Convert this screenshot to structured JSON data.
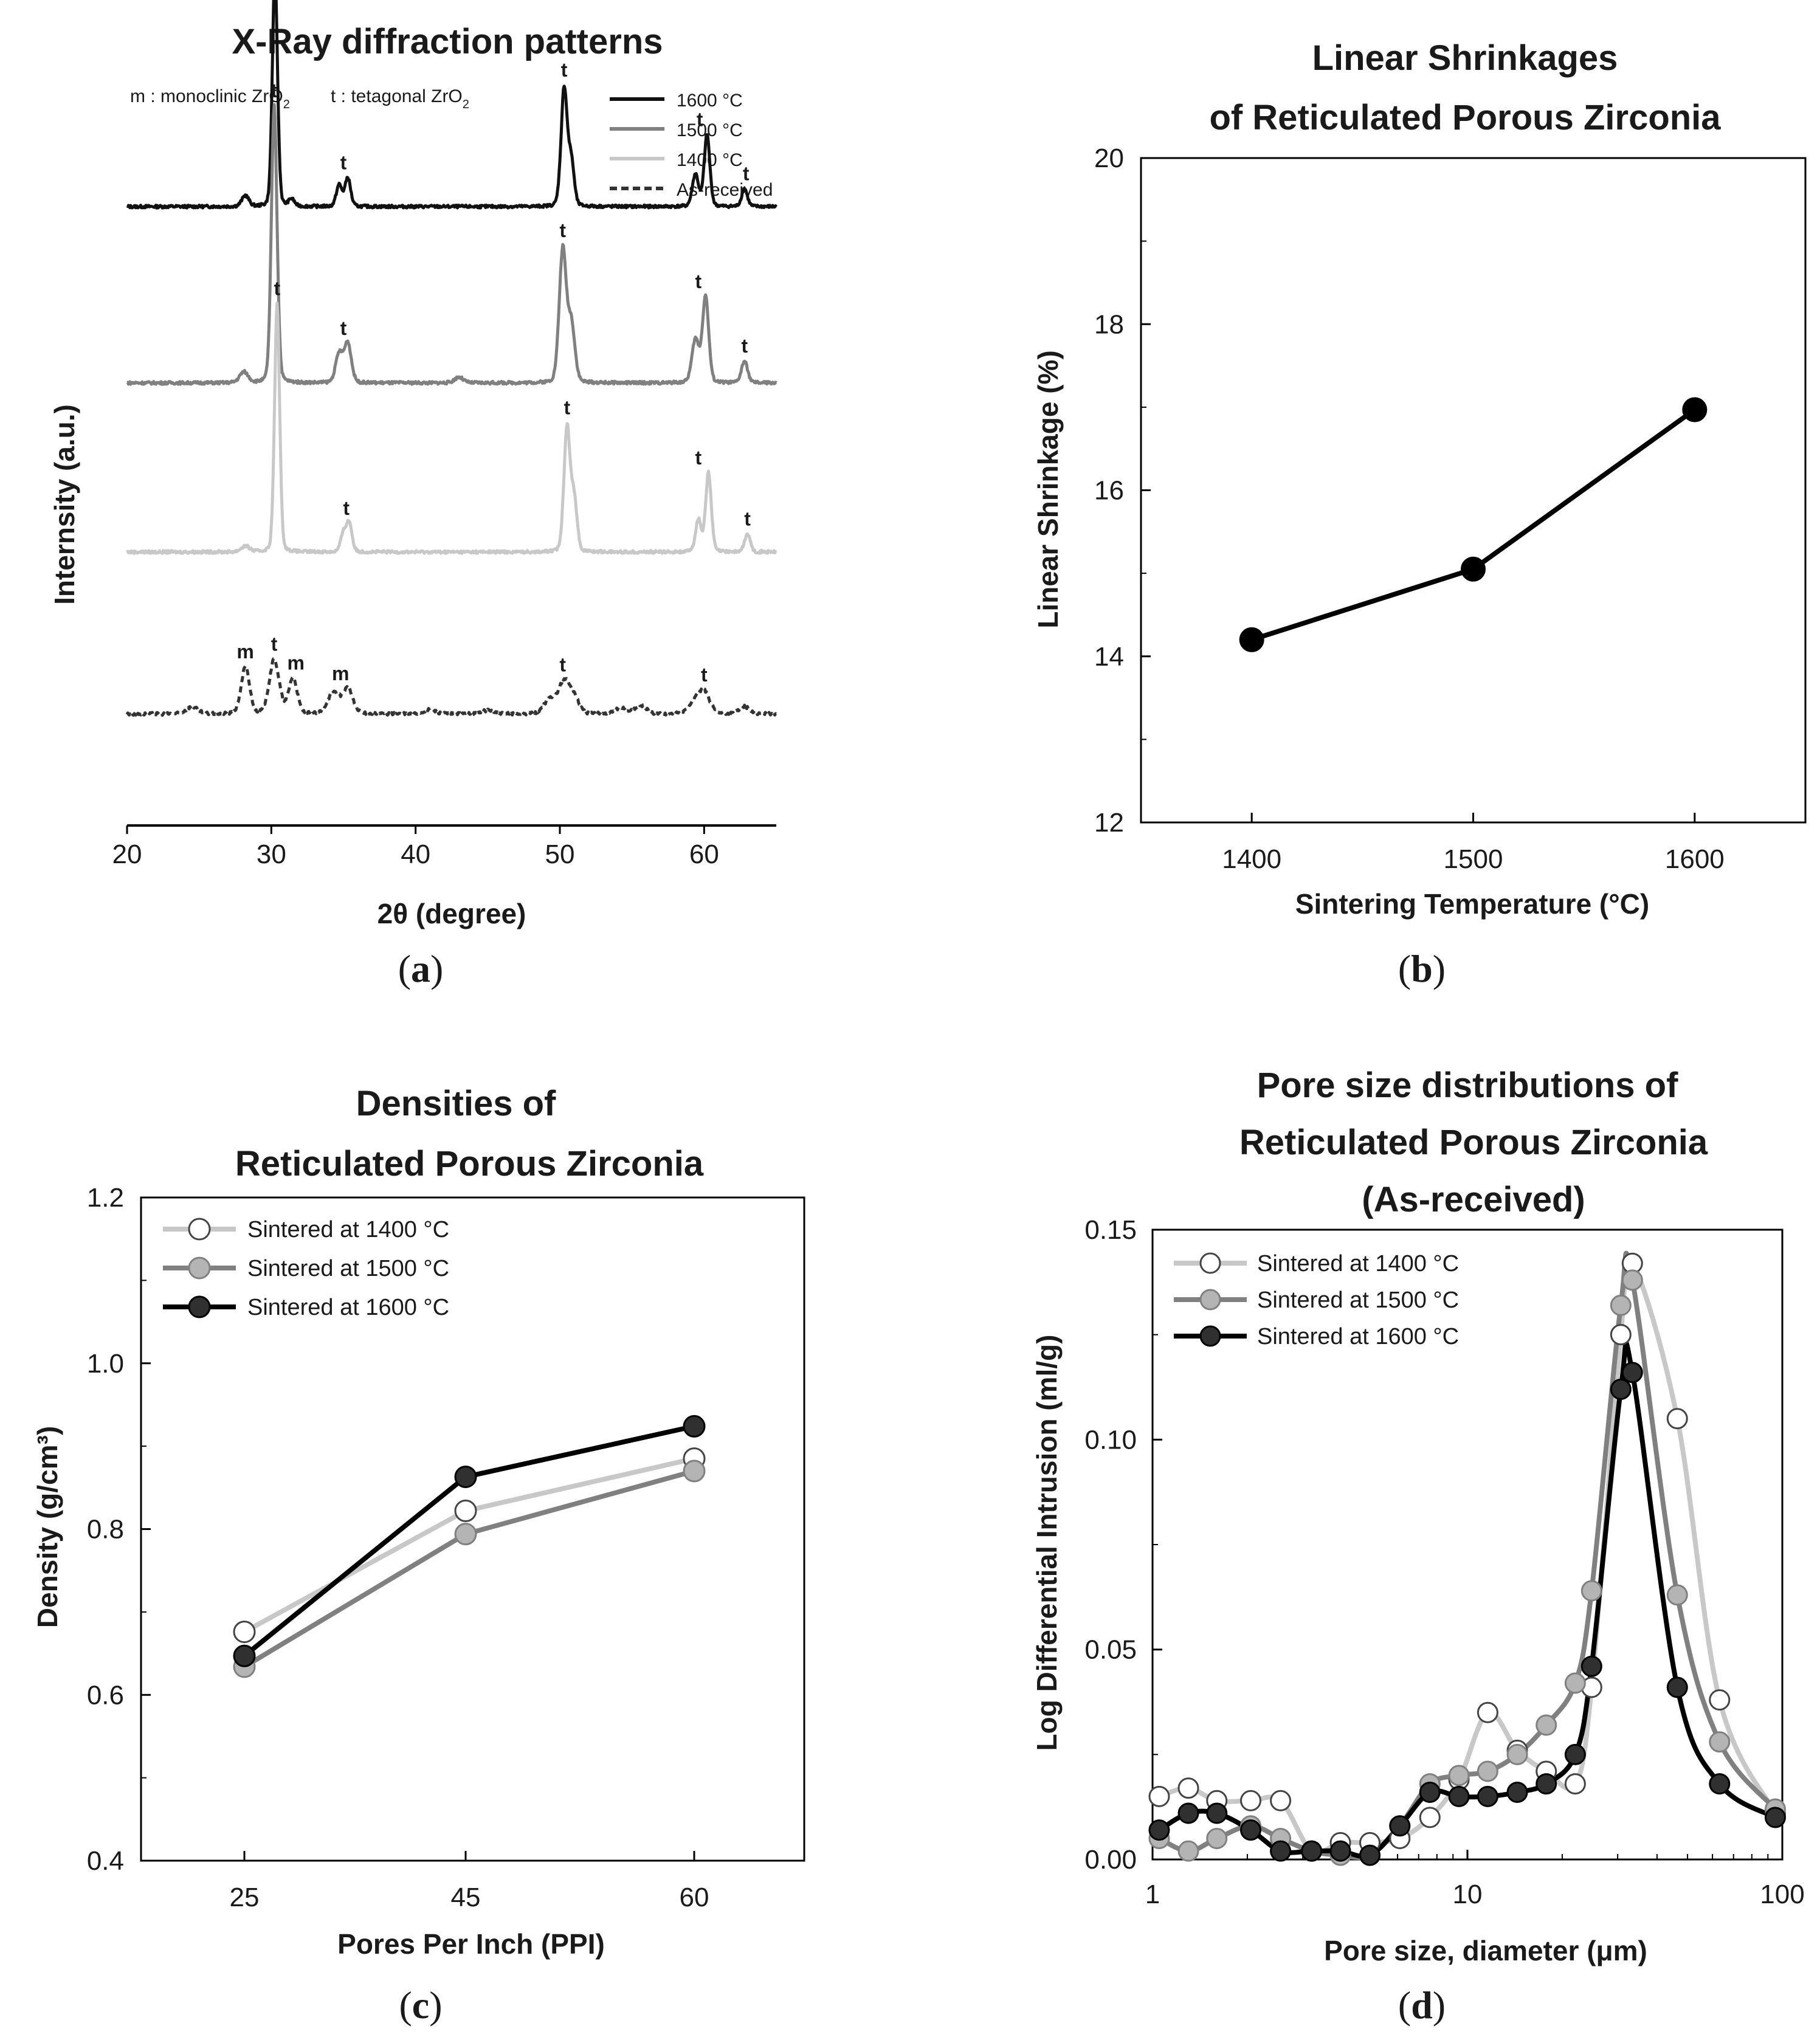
{
  "chart_data": [
    {
      "id": "a",
      "type": "line",
      "title": "X-Ray diffraction patterns",
      "xlabel": "2θ (degree)",
      "ylabel": "Internsity (a.u.)",
      "xlim": [
        20,
        65
      ],
      "xticks": [
        "20",
        "30",
        "40",
        "50",
        "60"
      ],
      "caption": "a",
      "note_parts": [
        {
          "text": "m : monoclinic ZrO",
          "sub": "2"
        },
        {
          "text": "t : tetagonal ZrO",
          "sub": "2"
        }
      ],
      "series": [
        {
          "name": "1600 °C",
          "color": "#111111",
          "dashed": false,
          "baseline": 0.86,
          "peaks": [
            {
              "x": 28.2,
              "h": 0.015,
              "w": 0.25
            },
            {
              "x": 30.25,
              "h": 0.33,
              "w": 0.18
            },
            {
              "x": 31.4,
              "h": 0.01,
              "w": 0.2
            },
            {
              "x": 34.7,
              "h": 0.03,
              "w": 0.2
            },
            {
              "x": 35.3,
              "h": 0.04,
              "w": 0.2
            },
            {
              "x": 50.3,
              "h": 0.165,
              "w": 0.22
            },
            {
              "x": 50.8,
              "h": 0.06,
              "w": 0.2
            },
            {
              "x": 59.4,
              "h": 0.045,
              "w": 0.22
            },
            {
              "x": 60.2,
              "h": 0.1,
              "w": 0.2
            },
            {
              "x": 62.8,
              "h": 0.025,
              "w": 0.2
            }
          ],
          "labels": [
            {
              "x": 30.25,
              "text": "t"
            },
            {
              "x": 35.0,
              "text": "t"
            },
            {
              "x": 50.3,
              "text": "t"
            },
            {
              "x": 59.7,
              "text": "t"
            },
            {
              "x": 62.9,
              "text": "t"
            }
          ]
        },
        {
          "name": "1500 °C",
          "color": "#808080",
          "dashed": false,
          "baseline": 0.615,
          "peaks": [
            {
              "x": 28.1,
              "h": 0.015,
              "w": 0.3
            },
            {
              "x": 30.2,
              "h": 0.385,
              "w": 0.2
            },
            {
              "x": 34.7,
              "h": 0.04,
              "w": 0.25
            },
            {
              "x": 35.3,
              "h": 0.055,
              "w": 0.25
            },
            {
              "x": 43.0,
              "h": 0.008,
              "w": 0.3
            },
            {
              "x": 50.2,
              "h": 0.185,
              "w": 0.25
            },
            {
              "x": 50.8,
              "h": 0.08,
              "w": 0.25
            },
            {
              "x": 59.4,
              "h": 0.06,
              "w": 0.25
            },
            {
              "x": 60.1,
              "h": 0.12,
              "w": 0.22
            },
            {
              "x": 62.8,
              "h": 0.03,
              "w": 0.22
            }
          ],
          "labels": [
            {
              "x": 30.2,
              "text": "t"
            },
            {
              "x": 35.0,
              "text": "t"
            },
            {
              "x": 50.2,
              "text": "t"
            },
            {
              "x": 59.6,
              "text": "t"
            },
            {
              "x": 62.8,
              "text": "t"
            }
          ]
        },
        {
          "name": "1400 °C",
          "color": "#c8c8c8",
          "dashed": false,
          "baseline": 0.38,
          "peaks": [
            {
              "x": 28.2,
              "h": 0.008,
              "w": 0.3
            },
            {
              "x": 30.4,
              "h": 0.345,
              "w": 0.18
            },
            {
              "x": 35.0,
              "h": 0.025,
              "w": 0.2
            },
            {
              "x": 35.4,
              "h": 0.04,
              "w": 0.2
            },
            {
              "x": 50.5,
              "h": 0.175,
              "w": 0.22
            },
            {
              "x": 51.0,
              "h": 0.07,
              "w": 0.2
            },
            {
              "x": 59.6,
              "h": 0.045,
              "w": 0.2
            },
            {
              "x": 60.3,
              "h": 0.11,
              "w": 0.2
            },
            {
              "x": 63.0,
              "h": 0.025,
              "w": 0.2
            }
          ],
          "labels": [
            {
              "x": 30.4,
              "text": "t"
            },
            {
              "x": 35.2,
              "text": "t"
            },
            {
              "x": 50.5,
              "text": "t"
            },
            {
              "x": 59.6,
              "text": "t"
            },
            {
              "x": 63.0,
              "text": "t"
            }
          ]
        },
        {
          "name": "As-received",
          "color": "#333333",
          "dashed": true,
          "baseline": 0.155,
          "peaks": [
            {
              "x": 24.5,
              "h": 0.01,
              "w": 0.4
            },
            {
              "x": 28.2,
              "h": 0.065,
              "w": 0.3
            },
            {
              "x": 30.2,
              "h": 0.075,
              "w": 0.35
            },
            {
              "x": 31.5,
              "h": 0.05,
              "w": 0.3
            },
            {
              "x": 34.3,
              "h": 0.03,
              "w": 0.4
            },
            {
              "x": 35.3,
              "h": 0.035,
              "w": 0.35
            },
            {
              "x": 41.0,
              "h": 0.006,
              "w": 0.4
            },
            {
              "x": 45.0,
              "h": 0.005,
              "w": 0.4
            },
            {
              "x": 49.3,
              "h": 0.02,
              "w": 0.4
            },
            {
              "x": 50.3,
              "h": 0.045,
              "w": 0.4
            },
            {
              "x": 51.0,
              "h": 0.02,
              "w": 0.35
            },
            {
              "x": 54.2,
              "h": 0.008,
              "w": 0.4
            },
            {
              "x": 55.6,
              "h": 0.012,
              "w": 0.4
            },
            {
              "x": 59.3,
              "h": 0.015,
              "w": 0.4
            },
            {
              "x": 60.0,
              "h": 0.03,
              "w": 0.4
            },
            {
              "x": 62.8,
              "h": 0.01,
              "w": 0.35
            }
          ],
          "labels": [
            {
              "x": 28.2,
              "text": "m"
            },
            {
              "x": 30.2,
              "text": "t"
            },
            {
              "x": 31.7,
              "text": "m"
            },
            {
              "x": 34.8,
              "text": "m"
            },
            {
              "x": 50.2,
              "text": "t"
            },
            {
              "x": 60.0,
              "text": "t"
            }
          ]
        }
      ]
    },
    {
      "id": "b",
      "type": "line",
      "title": [
        "Linear Shrinkages",
        "of Reticulated Porous Zirconia"
      ],
      "xlabel": "Sintering Temperature (°C)",
      "ylabel": "Linear Shrinkage (%)",
      "xlim": [
        1350,
        1650
      ],
      "ylim": [
        12,
        20
      ],
      "yticks": [
        12,
        14,
        16,
        18,
        20
      ],
      "categories": [
        "1400",
        "1500",
        "1600"
      ],
      "x": [
        1400,
        1500,
        1600
      ],
      "caption": "b",
      "series": [
        {
          "name": "Linear Shrinkage",
          "values": [
            14.2,
            15.05,
            16.97
          ],
          "color": "#000000",
          "fill": "#000000"
        }
      ]
    },
    {
      "id": "c",
      "type": "line",
      "title": [
        "Densities of",
        "Reticulated Porous Zirconia"
      ],
      "xlabel": "Pores Per Inch (PPI)",
      "ylabel": "Density (g/cm³)",
      "ylim": [
        0.4,
        1.2
      ],
      "yticks": [
        "0.4",
        "0.6",
        "0.8",
        "1.0",
        "1.2"
      ],
      "categories": [
        "25",
        "45",
        "60"
      ],
      "caption": "c",
      "legend_position": "top-left",
      "series": [
        {
          "name": "Sintered at 1400 °C",
          "values": [
            0.676,
            0.822,
            0.885
          ],
          "color": "#c8c8c8",
          "fill": "#ffffff"
        },
        {
          "name": "Sintered at 1500 °C",
          "values": [
            0.634,
            0.794,
            0.87
          ],
          "color": "#808080",
          "fill": "#b4b4b4"
        },
        {
          "name": "Sintered at 1600 °C",
          "values": [
            0.647,
            0.863,
            0.924
          ],
          "color": "#000000",
          "fill": "#303030"
        }
      ]
    },
    {
      "id": "d",
      "type": "line",
      "title": [
        "Pore size distributions of",
        "Reticulated Porous Zirconia",
        "(As-received)"
      ],
      "xlabel": "Pore size, diameter (μm)",
      "ylabel": "Log Differential Intrusion (ml/g)",
      "xscale": "log",
      "xlim": [
        1,
        100
      ],
      "ylim": [
        0,
        0.15
      ],
      "xticks": [
        "1",
        "10",
        "100"
      ],
      "yticks": [
        "0.00",
        "0.05",
        "0.10",
        "0.15"
      ],
      "caption": "d",
      "legend_position": "top-left",
      "series": [
        {
          "name": "Sintered at 1400 °C",
          "color": "#c8c8c8",
          "fill": "#ffffff",
          "x": [
            1.05,
            1.3,
            1.6,
            2.05,
            2.55,
            3.2,
            3.95,
            4.9,
            6.1,
            7.6,
            9.4,
            11.6,
            14.4,
            17.8,
            22.0,
            24.8,
            30.7,
            33.4,
            46.4,
            63.2,
            95.0
          ],
          "y": [
            0.015,
            0.017,
            0.014,
            0.014,
            0.014,
            0.002,
            0.004,
            0.004,
            0.005,
            0.01,
            0.019,
            0.035,
            0.026,
            0.021,
            0.018,
            0.041,
            0.125,
            0.142,
            0.105,
            0.038,
            0.011
          ]
        },
        {
          "name": "Sintered at 1500 °C",
          "color": "#808080",
          "fill": "#b4b4b4",
          "x": [
            1.05,
            1.3,
            1.6,
            2.05,
            2.55,
            3.2,
            3.95,
            4.9,
            6.1,
            7.6,
            9.4,
            11.6,
            14.4,
            17.8,
            22.0,
            24.8,
            30.7,
            33.4,
            46.4,
            63.2,
            95.0
          ],
          "y": [
            0.005,
            0.002,
            0.005,
            0.008,
            0.005,
            0.002,
            0.001,
            0.001,
            0.008,
            0.018,
            0.02,
            0.021,
            0.025,
            0.032,
            0.042,
            0.064,
            0.132,
            0.138,
            0.063,
            0.028,
            0.012
          ]
        },
        {
          "name": "Sintered at 1600 °C",
          "color": "#000000",
          "fill": "#303030",
          "x": [
            1.05,
            1.3,
            1.6,
            2.05,
            2.55,
            3.2,
            3.95,
            4.9,
            6.1,
            7.6,
            9.4,
            11.6,
            14.4,
            17.8,
            22.0,
            24.8,
            30.7,
            33.4,
            46.4,
            63.2,
            95.0
          ],
          "y": [
            0.007,
            0.011,
            0.011,
            0.007,
            0.002,
            0.002,
            0.002,
            0.001,
            0.008,
            0.016,
            0.015,
            0.015,
            0.016,
            0.018,
            0.025,
            0.046,
            0.112,
            0.116,
            0.041,
            0.018,
            0.01
          ]
        }
      ]
    }
  ]
}
